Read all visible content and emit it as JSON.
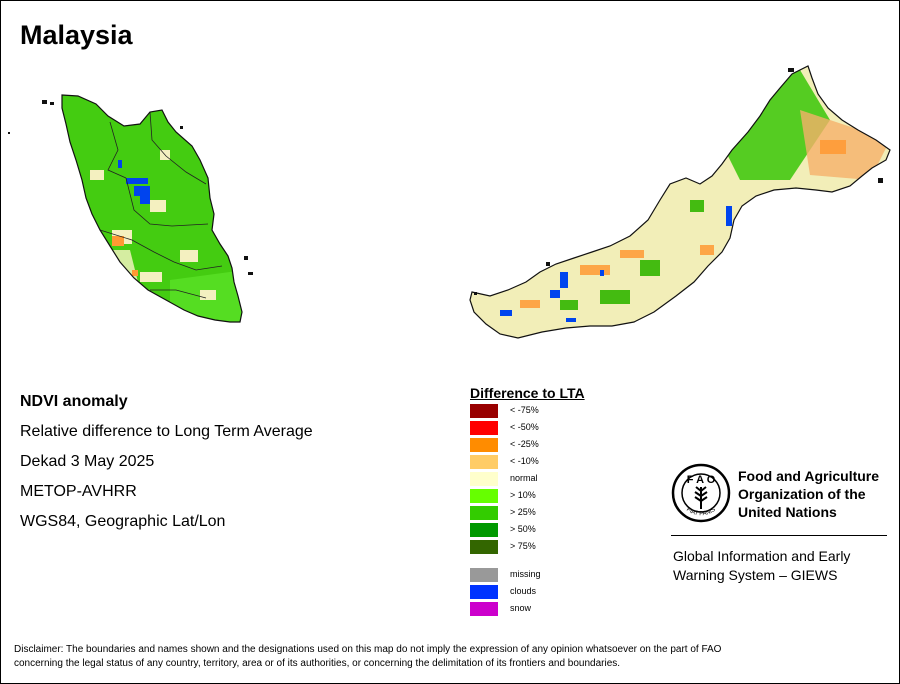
{
  "title": "Malaysia",
  "info": {
    "line1": "NDVI anomaly",
    "line2": "Relative difference to Long Term Average",
    "line3": "Dekad 3 May 2025",
    "line4": "METOP-AVHRR",
    "line5": "WGS84, Geographic Lat/Lon"
  },
  "legend": {
    "title": "Difference to LTA",
    "items": [
      {
        "label": "< -75%",
        "color": "#990000"
      },
      {
        "label": "< -50%",
        "color": "#ff0000"
      },
      {
        "label": "< -25%",
        "color": "#ff8c00"
      },
      {
        "label": "< -10%",
        "color": "#ffcc66"
      },
      {
        "label": "normal",
        "color": "#ffffcc"
      },
      {
        "label": "> 10%",
        "color": "#66ff00"
      },
      {
        "label": "> 25%",
        "color": "#33cc00"
      },
      {
        "label": "> 50%",
        "color": "#009900"
      },
      {
        "label": "> 75%",
        "color": "#336600"
      }
    ],
    "extra": [
      {
        "label": "missing",
        "color": "#999999"
      },
      {
        "label": "clouds",
        "color": "#0033ff"
      },
      {
        "label": "snow",
        "color": "#cc00cc"
      }
    ]
  },
  "fao": {
    "name_line1": "Food and Agriculture",
    "name_line2": "Organization of the",
    "name_line3": "United Nations",
    "giews_line1": "Global Information and Early",
    "giews_line2": "Warning System – GIEWS",
    "emblem_text": "FIAT PANIS"
  },
  "disclaimer": {
    "line1": "Disclaimer: The boundaries and names shown and the designations used on this map do not imply the expression of any opinion whatsoever on the part of FAO",
    "line2": "concerning the legal status of any country, territory, area or of its authorities, or concerning the delimitation of its frontiers and boundaries."
  }
}
